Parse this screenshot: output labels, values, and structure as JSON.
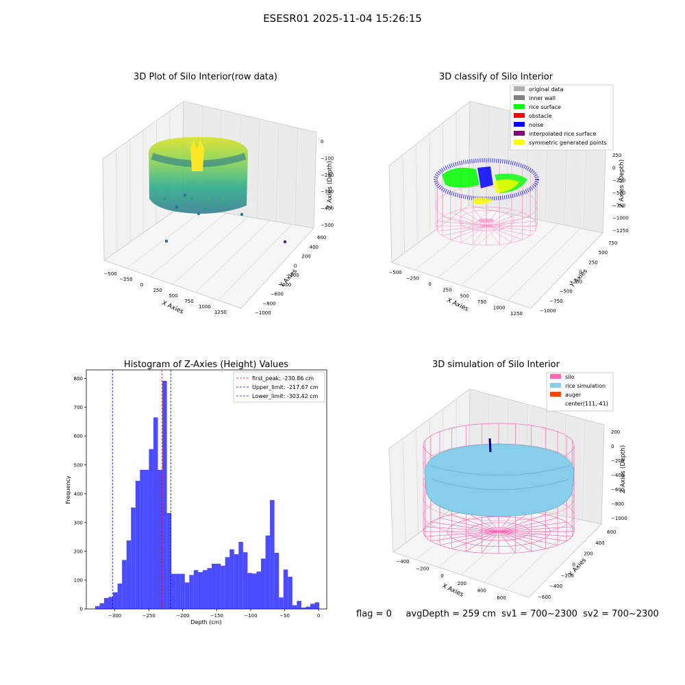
{
  "figure_title": "ESESR01 2025-11-04 15:26:15",
  "footer_text": "flag = 0     avgDepth = 259 cm  sv1 = 700~2300  sv2 = 700~2300",
  "colors": {
    "silo": "#ff69b4",
    "rice": "#87ceeb",
    "auger": "#ff4500",
    "hist_bar": "#0000ff",
    "peak_line": "#ff0000",
    "limit_line": "#0000ff",
    "original": "#b0b0b0",
    "inner_wall": "#808080",
    "rice_surface": "#00ff00",
    "obstacle": "#ff0000",
    "noise": "#0000ff",
    "interpolated": "#800080",
    "symmetric": "#ffff00"
  },
  "chart_data": [
    {
      "type": "scatter3d",
      "title": "3D Plot of Silo Interior(row data)",
      "xlabel": "X Axies",
      "ylabel": "Y Axies",
      "zlabel": "Z Axies (Depth)",
      "xticks": [
        "−500",
        "−250",
        "0",
        "250",
        "500",
        "750",
        "1000",
        "1250"
      ],
      "yticks": [
        "−1000",
        "−800",
        "−600",
        "−400",
        "−200",
        "0",
        "200",
        "400",
        "600"
      ],
      "zticks": [
        "0",
        "−100",
        "−200",
        "−300",
        "−400",
        "−500"
      ],
      "xlim": [
        -600,
        1350
      ],
      "ylim": [
        -1050,
        650
      ],
      "zlim": [
        -550,
        20
      ],
      "colormap": "viridis"
    },
    {
      "type": "scatter3d",
      "title": "3D classify of Silo Interior",
      "xlabel": "X Axies",
      "ylabel": "Y Axies",
      "zlabel": "Z Axies (Depth)",
      "xticks": [
        "−500",
        "−250",
        "0",
        "250",
        "500",
        "750",
        "1000",
        "1250"
      ],
      "yticks": [
        "−1000",
        "−750",
        "−500",
        "−250",
        "0",
        "250",
        "500",
        "750"
      ],
      "zticks": [
        "250",
        "0",
        "−250",
        "−500",
        "−750",
        "−1000",
        "−1250"
      ],
      "legend": [
        {
          "name": "original data",
          "color": "#b0b0b0"
        },
        {
          "name": "inner wall",
          "color": "#808080"
        },
        {
          "name": "rice surface",
          "color": "#00ff00"
        },
        {
          "name": "obstacle",
          "color": "#ff0000"
        },
        {
          "name": "noise",
          "color": "#0000ff"
        },
        {
          "name": "interpolated rice surface",
          "color": "#800080"
        },
        {
          "name": "symmetric generated points",
          "color": "#ffff00"
        }
      ]
    },
    {
      "type": "bar",
      "title": "Histogram of Z-Axies (Height) Values",
      "xlabel": "Depth (cm)",
      "ylabel": "Frequency",
      "xlim": [
        -342,
        12
      ],
      "ylim": [
        0,
        830
      ],
      "xticks": [
        -300,
        -250,
        -200,
        -150,
        -100,
        -50,
        0
      ],
      "yticks": [
        0,
        100,
        200,
        300,
        400,
        500,
        600,
        700,
        800
      ],
      "bin_start": -329,
      "bin_width": 6.6,
      "values": [
        10,
        20,
        38,
        42,
        58,
        88,
        170,
        238,
        352,
        445,
        483,
        483,
        555,
        665,
        483,
        792,
        333,
        122,
        122,
        122,
        92,
        118,
        135,
        128,
        135,
        142,
        157,
        157,
        150,
        180,
        207,
        190,
        233,
        197,
        125,
        123,
        130,
        175,
        255,
        378,
        195,
        40,
        137,
        112,
        13,
        28,
        5,
        8,
        18,
        23
      ],
      "vlines": [
        {
          "x": -230.86,
          "label": "first_peak: -230.86 cm",
          "color": "#ff0000"
        },
        {
          "x": -217.67,
          "label": "Upper_limit: -217.67 cm",
          "color": "#0000ff"
        },
        {
          "x": -303.42,
          "label": "Lower_limit: -303.42 cm",
          "color": "#0000ff"
        }
      ]
    },
    {
      "type": "surface3d",
      "title": "3D simulation of Silo Interior",
      "xlabel": "X Axies",
      "ylabel": "Y Axies",
      "zlabel": "Z Axies (Depth)",
      "xticks": [
        "−400",
        "−200",
        "0",
        "200",
        "400",
        "600"
      ],
      "yticks": [
        "−600",
        "−400",
        "−200",
        "0",
        "200",
        "400",
        "600"
      ],
      "zticks": [
        "200",
        "0",
        "−200",
        "−400",
        "−600",
        "−800",
        "−1000"
      ],
      "legend": [
        {
          "name": "silo",
          "color": "#ff69b4"
        },
        {
          "name": "rice simulation",
          "color": "#87ceeb"
        },
        {
          "name": "auger",
          "color": "#ff4500"
        },
        {
          "name": "center(111,-41)",
          "color": ""
        }
      ]
    }
  ]
}
